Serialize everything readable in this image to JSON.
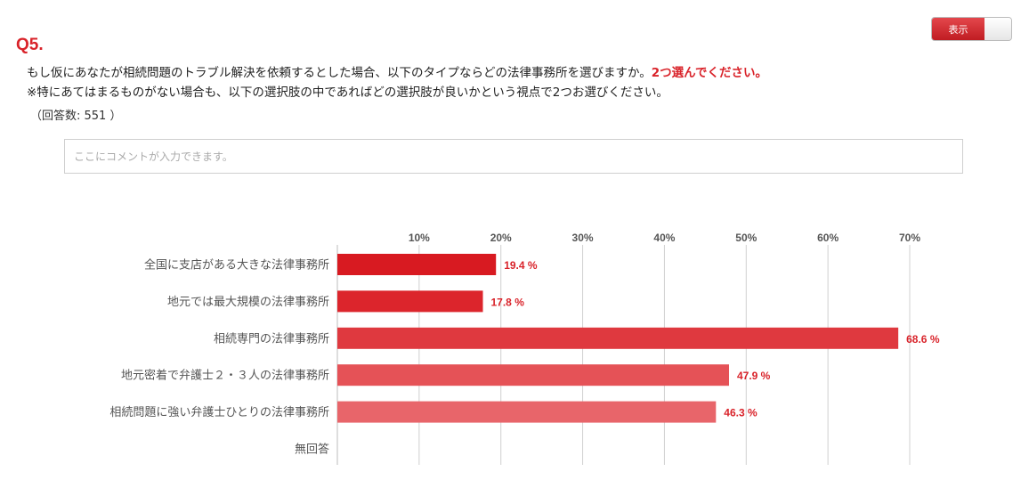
{
  "question": {
    "label": "Q5.",
    "line1_main": "もし仮にあなたが相続問題のトラブル解決を依頼するとした場合、以下のタイプならどの法律事務所を選びますか。",
    "line1_emphasis": "2つ選んでください。",
    "line2": "※特にあてはまるものがない場合も、以下の選択肢の中であればどの選択肢が良いかという視点で2つお選びください。",
    "response_count": "（回答数: 551 ）"
  },
  "toggle": {
    "label": "表示",
    "state": "on"
  },
  "comment": {
    "placeholder": "ここにコメントが入力できます。",
    "value": ""
  },
  "colors": {
    "accent": "#d9232a"
  },
  "chart_data": {
    "type": "bar",
    "orientation": "horizontal",
    "categories": [
      "全国に支店がある大きな法律事務所",
      "地元では最大規模の法律事務所",
      "相続専門の法律事務所",
      "地元密着で弁護士２・３人の法律事務所",
      "相続問題に強い弁護士ひとりの法律事務所",
      "無回答"
    ],
    "values": [
      19.4,
      17.8,
      68.6,
      47.9,
      46.3,
      0
    ],
    "value_labels": [
      "19.4 %",
      "17.8 %",
      "68.6 %",
      "47.9 %",
      "46.3 %",
      ""
    ],
    "bar_colors": [
      "#d81a21",
      "#dc252c",
      "#df393f",
      "#e55257",
      "#e8656a",
      "#ec7a7e"
    ],
    "x_ticks": [
      10,
      20,
      30,
      40,
      50,
      60,
      70
    ],
    "x_tick_labels": [
      "10%",
      "20%",
      "30%",
      "40%",
      "50%",
      "60%",
      "70%"
    ],
    "xlim": [
      0,
      70
    ],
    "grid": true,
    "axis_position": "top"
  }
}
